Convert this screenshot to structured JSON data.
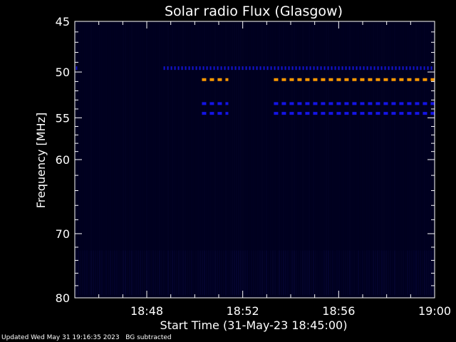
{
  "chart_data": {
    "type": "heatmap",
    "title": "Solar radio Flux (Glasgow)",
    "xlabel": "Start Time (31-May-23 18:45:00)",
    "ylabel": "Frequency [MHz]",
    "x_unit": "minutes after 18:45:00",
    "xlim": [
      0,
      15
    ],
    "ylim": [
      45,
      80
    ],
    "y_scale": "inverted-log",
    "x_ticks": [
      {
        "minute": 3,
        "label": "18:48"
      },
      {
        "minute": 7,
        "label": "18:52"
      },
      {
        "minute": 11,
        "label": "18:56"
      },
      {
        "minute": 15,
        "label": "19:00"
      }
    ],
    "y_ticks": [
      45,
      50,
      55,
      60,
      70,
      80
    ],
    "background_color": "#00001e",
    "bands": [
      {
        "freq_mhz": 49.6,
        "color": "#1414d2",
        "segments": [
          [
            -0.1,
            0.1
          ],
          [
            3.7,
            15.0
          ]
        ],
        "dash": "dotted"
      },
      {
        "freq_mhz": 50.8,
        "color": "#ff9900",
        "segments": [
          [
            5.3,
            6.4
          ],
          [
            8.3,
            15.0
          ]
        ],
        "dash": "dashed"
      },
      {
        "freq_mhz": 53.4,
        "color": "#1414e6",
        "segments": [
          [
            5.3,
            6.4
          ],
          [
            8.3,
            15.0
          ]
        ],
        "dash": "dashed"
      },
      {
        "freq_mhz": 54.5,
        "color": "#1414e6",
        "segments": [
          [
            5.3,
            6.4
          ],
          [
            8.3,
            15.0
          ]
        ],
        "dash": "dashed"
      }
    ]
  },
  "footer": {
    "updated": "Updated Wed May 31 19:16:35 2023",
    "note": "BG subtracted"
  }
}
